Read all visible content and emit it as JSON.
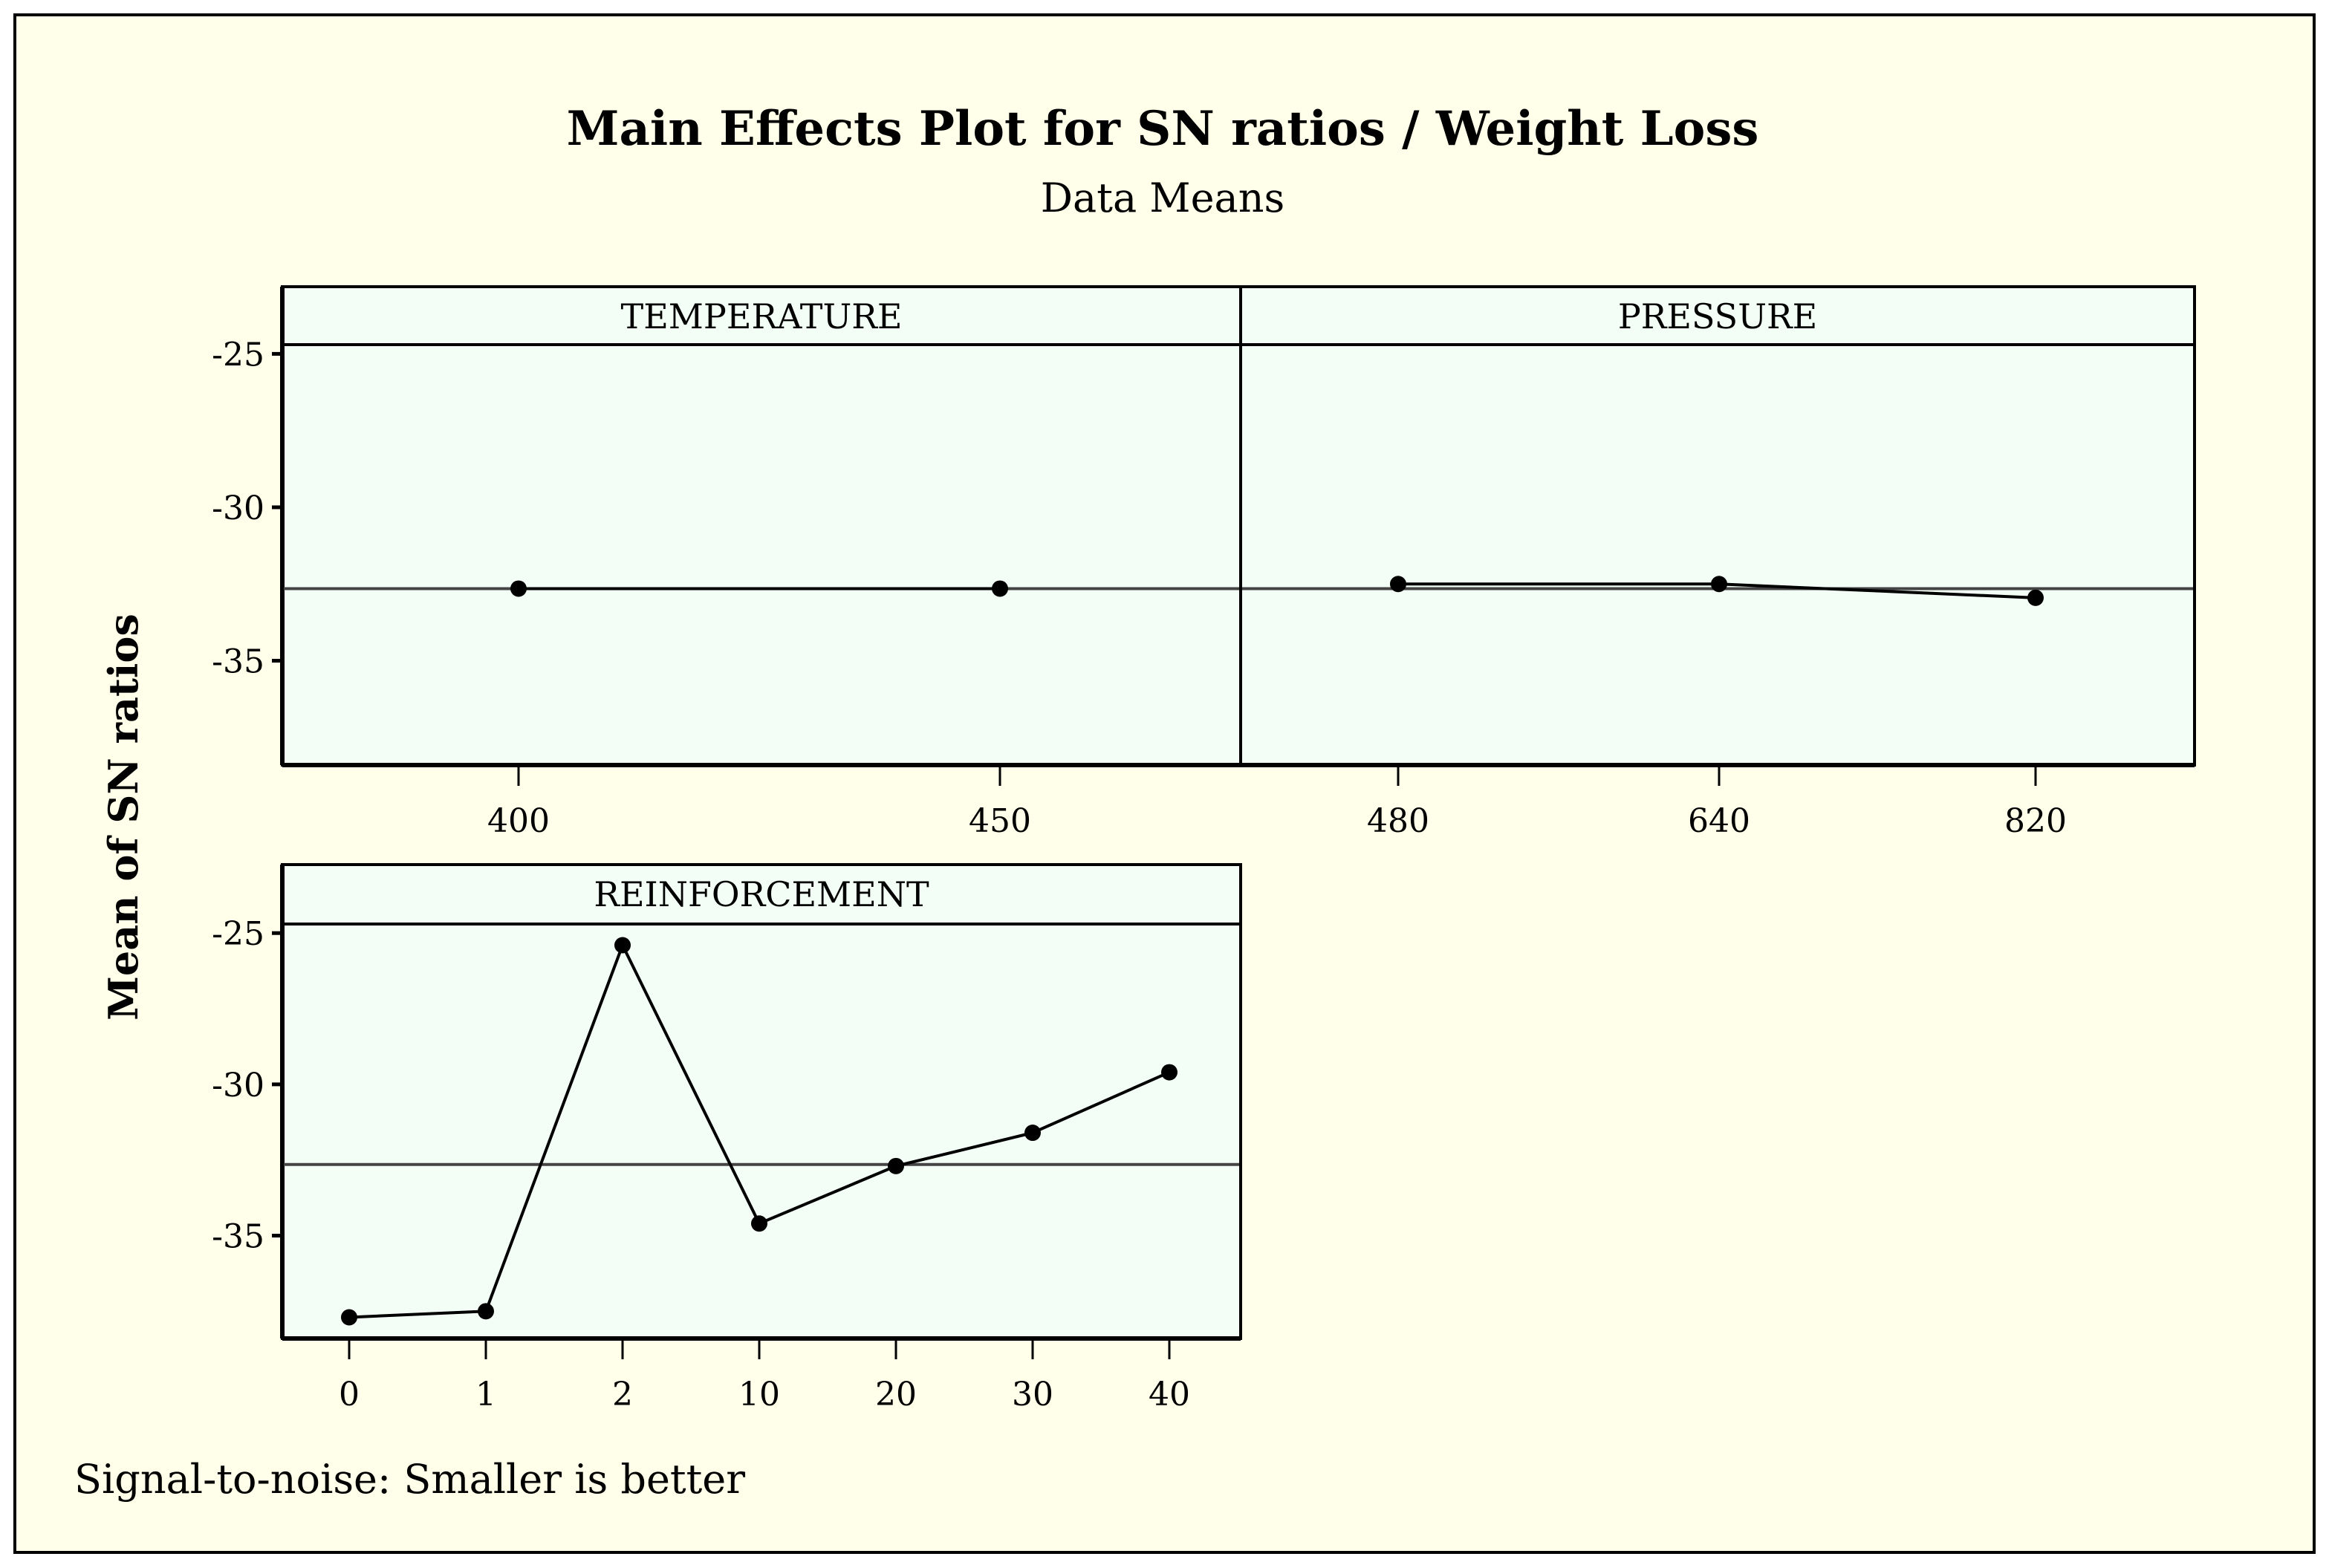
{
  "chart_data": {
    "type": "line",
    "title": "Main Effects Plot for SN ratios / Weight Loss",
    "subtitle": "Data Means",
    "ylabel": "Mean of SN ratios",
    "footnote": "Signal-to-noise: Smaller is better",
    "ylim": [
      -38.4,
      -24.7
    ],
    "yticks": [
      -25,
      -30,
      -35
    ],
    "ytick_labels": [
      "-25",
      "-30",
      "-35"
    ],
    "grand_mean": -32.65,
    "grid": false,
    "colors": {
      "background": "#ffffea",
      "panel": "#f3fff6",
      "line": "#000000",
      "mean_line": "#444444"
    },
    "panels": [
      {
        "name": "TEMPERATURE",
        "categories": [
          "400",
          "450"
        ],
        "values": [
          -32.65,
          -32.65
        ]
      },
      {
        "name": "PRESSURE",
        "categories": [
          "480",
          "640",
          "820"
        ],
        "values": [
          -32.5,
          -32.5,
          -32.95
        ]
      },
      {
        "name": "REINFORCEMENT",
        "categories": [
          "0",
          "1",
          "2",
          "10",
          "20",
          "30",
          "40"
        ],
        "values": [
          -37.7,
          -37.5,
          -25.4,
          -34.6,
          -32.7,
          -31.6,
          -29.6
        ]
      }
    ]
  }
}
